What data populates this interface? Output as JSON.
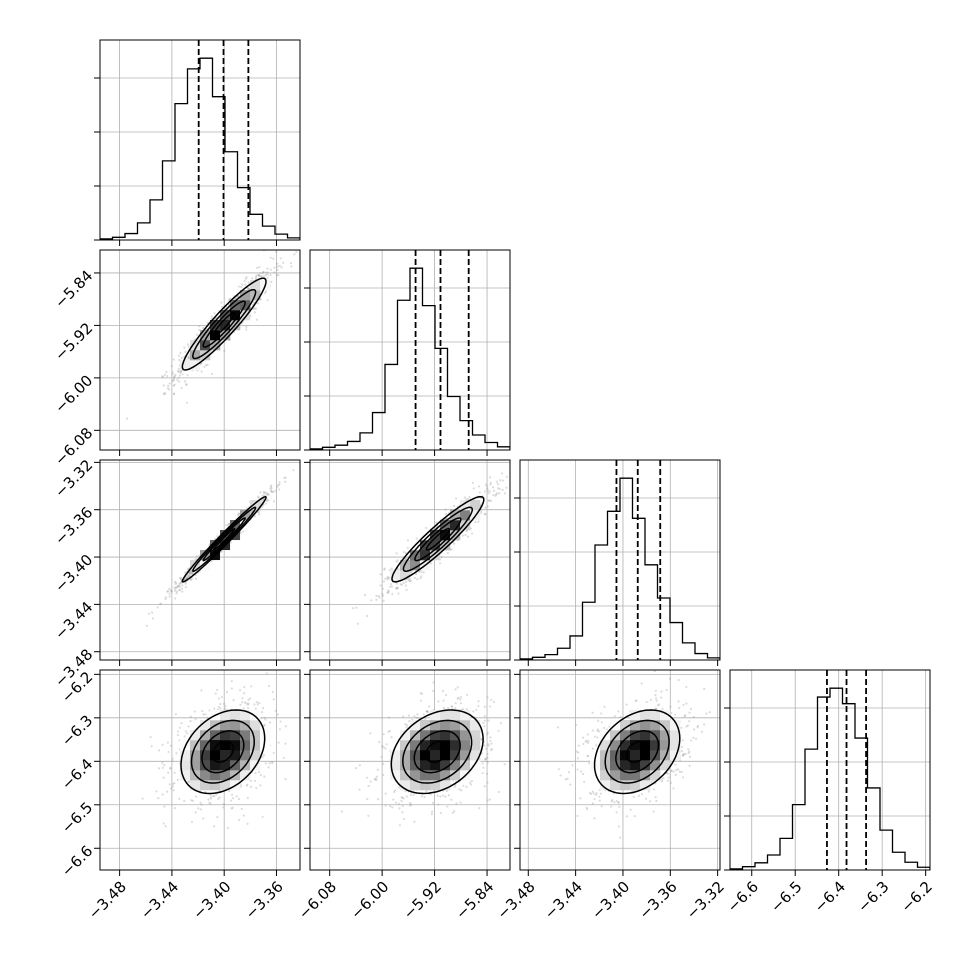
{
  "chart_data": {
    "type": "corner",
    "grid": true,
    "style": {
      "grid_color": "#b0b0b0",
      "hist_color": "#000000",
      "scatter_color": "#9a9a9a",
      "density_dark": "#000000",
      "density_light": "#ffffff"
    },
    "parameters": [
      {
        "range": [
          -3.495,
          -3.342
        ],
        "ticks": [
          -3.48,
          -3.44,
          -3.4,
          -3.36
        ],
        "tick_labels": [
          "−3.48",
          "−3.44",
          "−3.40",
          "−3.36"
        ],
        "quantiles": [
          -3.4195,
          -3.4005,
          -3.3815
        ],
        "hist": {
          "edges": [
            -3.495,
            -3.342
          ],
          "counts": [
            2,
            5,
            12,
            32,
            75,
            148,
            255,
            320,
            340,
            268,
            165,
            98,
            48,
            26,
            11,
            4
          ]
        }
      },
      {
        "range": [
          -6.11,
          -5.805
        ],
        "ticks": [
          -6.08,
          -6.0,
          -5.92,
          -5.84
        ],
        "tick_labels": [
          "−6.08",
          "−6.00",
          "−5.92",
          "−5.84"
        ],
        "quantiles": [
          -5.949,
          -5.911,
          -5.868
        ],
        "hist": {
          "edges": [
            -6.11,
            -5.805
          ],
          "counts": [
            2,
            5,
            9,
            16,
            32,
            70,
            160,
            280,
            340,
            270,
            190,
            100,
            55,
            28,
            14,
            6
          ]
        }
      },
      {
        "range": [
          -3.487,
          -3.318
        ],
        "ticks": [
          -3.48,
          -3.44,
          -3.4,
          -3.36,
          -3.32
        ],
        "tick_labels": [
          "−3.48",
          "−3.44",
          "−3.40",
          "−3.36",
          "−3.32"
        ],
        "quantiles": [
          -3.4055,
          -3.3875,
          -3.3685
        ],
        "hist": {
          "edges": [
            -3.487,
            -3.318
          ],
          "counts": [
            2,
            5,
            10,
            22,
            45,
            108,
            215,
            278,
            340,
            265,
            178,
            116,
            70,
            32,
            12,
            4
          ]
        }
      },
      {
        "range": [
          -6.65,
          -6.19
        ],
        "ticks": [
          -6.6,
          -6.5,
          -6.4,
          -6.3,
          -6.2
        ],
        "tick_labels": [
          "−6.6",
          "−6.5",
          "−6.4",
          "−6.3",
          "−6.2"
        ],
        "quantiles": [
          -6.427,
          -6.382,
          -6.337
        ],
        "hist": {
          "edges": [
            -6.65,
            -6.19
          ],
          "counts": [
            2,
            6,
            13,
            27,
            57,
            118,
            218,
            312,
            328,
            300,
            238,
            148,
            72,
            32,
            14,
            5
          ]
        }
      }
    ],
    "pairs": [
      {
        "x": 0,
        "y": 1,
        "center": [
          -3.4,
          -5.918
        ],
        "sd": [
          0.016,
          0.035
        ],
        "rho": 0.93,
        "peaks": [
          [
            -3.402,
            -5.921
          ],
          [
            -3.397,
            -5.915
          ],
          [
            -3.405,
            -5.925
          ]
        ]
      },
      {
        "x": 0,
        "y": 2,
        "center": [
          -3.4,
          -3.385
        ],
        "sd": [
          0.016,
          0.018
        ],
        "rho": 0.985,
        "peaks": [
          [
            -3.409,
            -3.398
          ],
          [
            -3.401,
            -3.388
          ],
          [
            -3.393,
            -3.38
          ]
        ]
      },
      {
        "x": 1,
        "y": 2,
        "center": [
          -5.915,
          -3.385
        ],
        "sd": [
          0.035,
          0.018
        ],
        "rho": 0.93,
        "peaks": [
          [
            -5.91,
            -3.38
          ],
          [
            -5.918,
            -3.388
          ],
          [
            -5.925,
            -3.393
          ]
        ]
      },
      {
        "x": 0,
        "y": 3,
        "center": [
          -3.401,
          -6.378
        ],
        "sd": [
          0.016,
          0.048
        ],
        "rho": 0.32,
        "peaks": [
          [
            -3.406,
            -6.372
          ],
          [
            -3.403,
            -6.382
          ]
        ]
      },
      {
        "x": 1,
        "y": 3,
        "center": [
          -5.916,
          -6.378
        ],
        "sd": [
          0.035,
          0.048
        ],
        "rho": 0.3,
        "peaks": [
          [
            -5.92,
            -6.372
          ],
          [
            -5.919,
            -6.385
          ]
        ]
      },
      {
        "x": 2,
        "y": 3,
        "center": [
          -3.388,
          -6.378
        ],
        "sd": [
          0.018,
          0.048
        ],
        "rho": 0.32,
        "peaks": [
          [
            -3.391,
            -6.372
          ],
          [
            -3.388,
            -6.383
          ]
        ]
      }
    ]
  }
}
